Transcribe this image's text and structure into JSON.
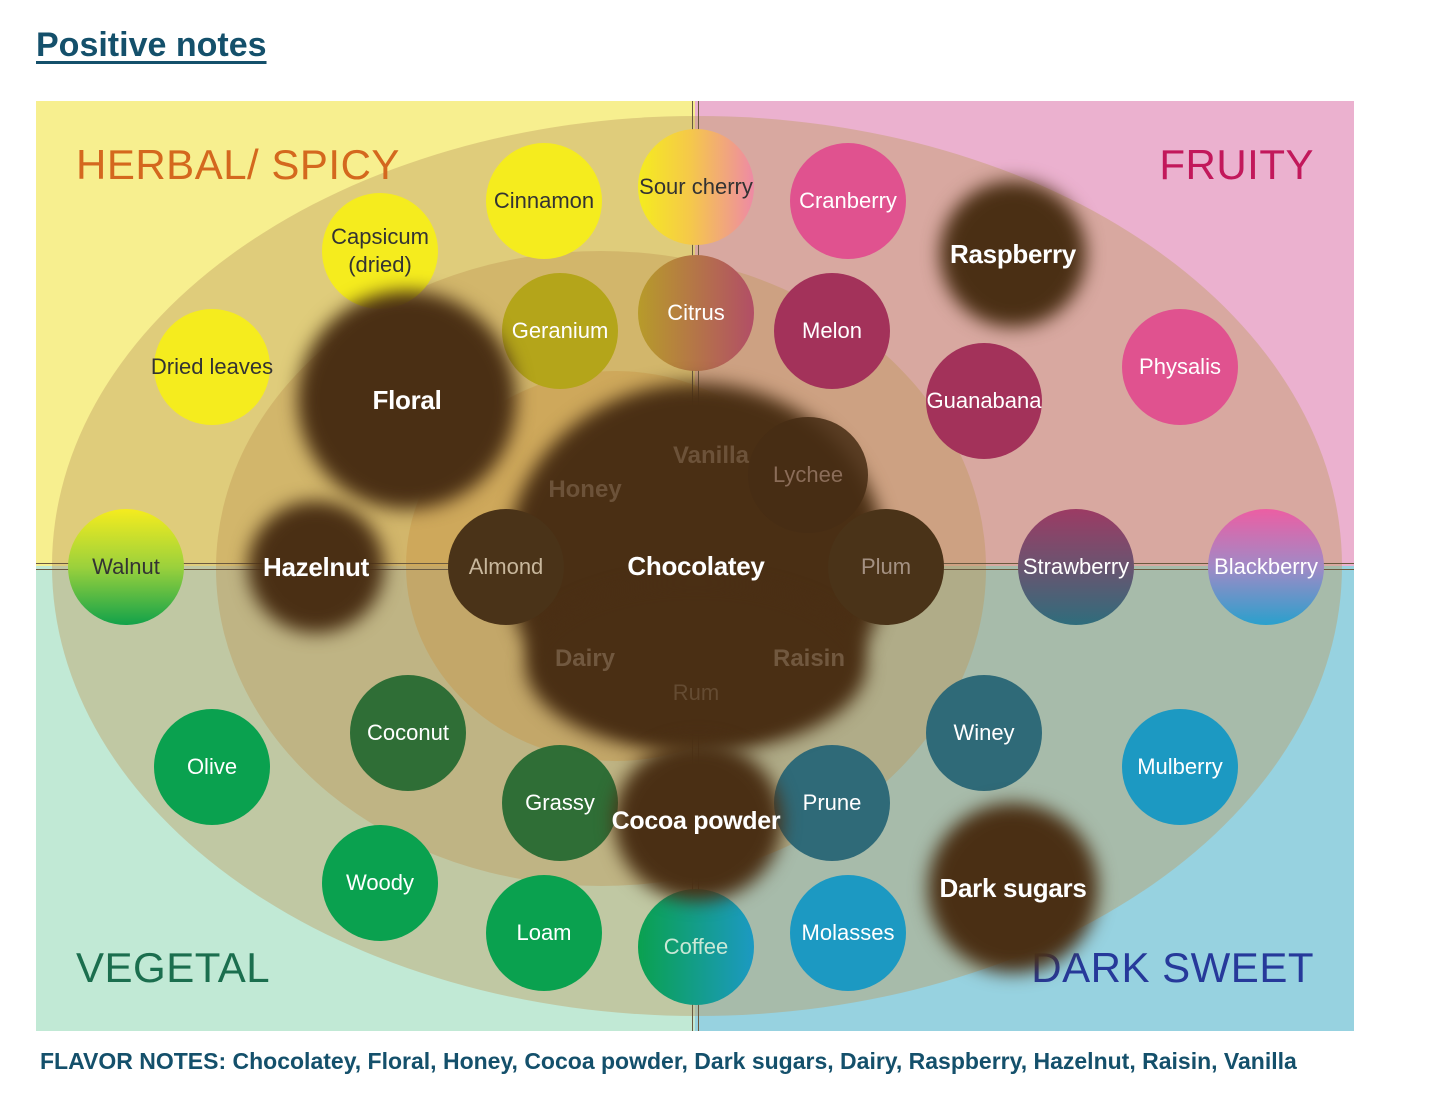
{
  "title": "Positive notes",
  "quadrants": {
    "herbal": "HERBAL/ SPICY",
    "fruity": "FRUITY",
    "vegetal": "VEGETAL",
    "dark_sweet": "DARK SWEET"
  },
  "notes": {
    "cinnamon": "Cinnamon",
    "sour_cherry": "Sour cherry",
    "cranberry": "Cranberry",
    "raspberry": "Raspberry",
    "capsicum": "Capsicum (dried)",
    "geranium": "Geranium",
    "citrus": "Citrus",
    "melon": "Melon",
    "dried_leaves": "Dried leaves",
    "floral": "Floral",
    "physalis": "Physalis",
    "guanabana": "Guanabana",
    "honey": "Honey",
    "vanilla": "Vanilla",
    "lychee": "Lychee",
    "walnut": "Walnut",
    "hazelnut": "Hazelnut",
    "almond": "Almond",
    "chocolatey": "Chocolatey",
    "plum": "Plum",
    "strawberry": "Strawberry",
    "blackberry": "Blackberry",
    "dairy": "Dairy",
    "raisin": "Raisin",
    "rum": "Rum",
    "olive": "Olive",
    "coconut": "Coconut",
    "winey": "Winey",
    "mulberry": "Mulberry",
    "grassy": "Grassy",
    "cocoa_powder": "Cocoa powder",
    "prune": "Prune",
    "woody": "Woody",
    "dark_sugars": "Dark sugars",
    "loam": "Loam",
    "coffee": "Coffee",
    "molasses": "Molasses"
  },
  "colors": {
    "herbal_quadrant": "#f7ef8f",
    "fruity_quadrant": "#ebb1cf",
    "vegetal_quadrant": "#c1e9d5",
    "dark_sweet_quadrant": "#97d2e0",
    "herbal_note": "#f5ec1e",
    "fruity_note": "#e0528f",
    "vegetal_note": "#0aa14f",
    "dark_sweet_note": "#1c99c2",
    "highlight": "#3f270f"
  },
  "footer": "FLAVOR NOTES: Chocolatey, Floral, Honey, Cocoa powder, Dark sugars, Dairy, Raspberry, Hazelnut, Raisin, Vanilla"
}
